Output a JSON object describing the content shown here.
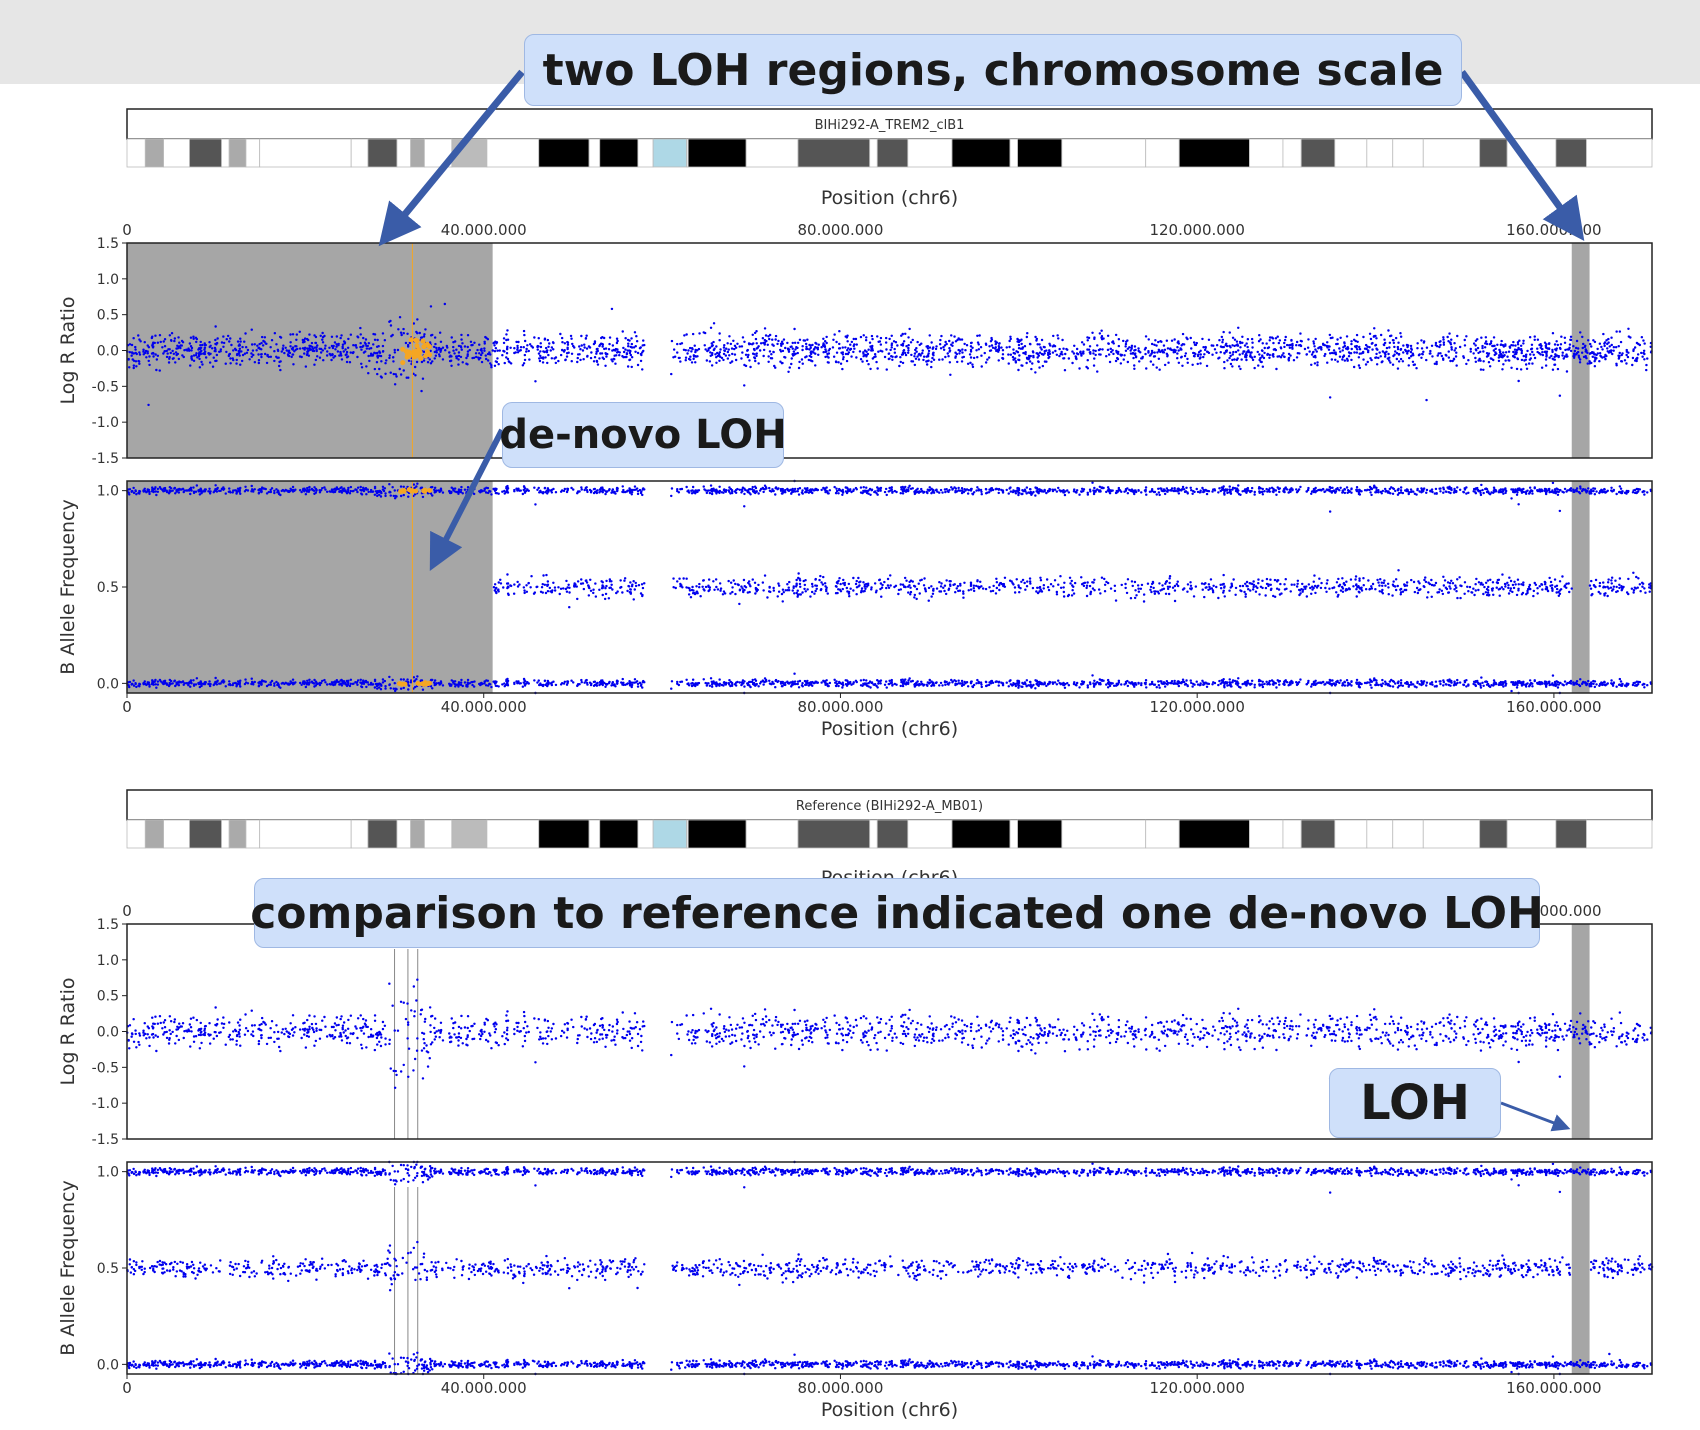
{
  "annotations": {
    "two_loh": "two LOH regions, chromosome scale",
    "denovo": "de-novo LOH",
    "comparison": "comparison to reference indicated one de-novo LOH",
    "loh": "LOH"
  },
  "colors": {
    "points": "#0000ee",
    "highlight_points": "#f5a623",
    "loh_region": "#a6a6a6",
    "arrow": "#3a5ca8",
    "callout_fill": "#cfe0fa"
  },
  "chart_data": [
    {
      "type": "scatter",
      "title": "BIHi292-A_TREM2_clB1",
      "xlabel": "Position (chr6)",
      "xlim": [
        0,
        171000000
      ],
      "xticks": [
        0,
        40000000,
        80000000,
        120000000,
        160000000
      ],
      "xtick_labels": [
        "0",
        "40.000.000",
        "80.000.000",
        "120.000.000",
        "160.000.000"
      ],
      "grid": false,
      "loh_regions": [
        [
          0,
          41000000
        ],
        [
          162000000,
          164000000
        ]
      ],
      "centromere_gap": [
        58000000,
        61000000
      ],
      "highlight_x_range": [
        28000000,
        33500000
      ],
      "panels": [
        {
          "ylabel": "Log R Ratio",
          "ylim": [
            -1.5,
            1.5
          ],
          "yticks": [
            -1.5,
            -1.0,
            -0.5,
            0.0,
            0.5,
            1.0,
            1.5
          ],
          "ytick_labels": [
            "-1.5",
            "-1.0",
            "-0.5",
            "0.0",
            "0.5",
            "1.0",
            "1.5"
          ],
          "bands": [
            {
              "y": 0.0,
              "spread": 0.18
            }
          ]
        },
        {
          "ylabel": "B Allele Frequency",
          "ylim": [
            -0.05,
            1.05
          ],
          "yticks": [
            0.0,
            0.5,
            1.0
          ],
          "ytick_labels": [
            "0.0",
            "0.5",
            "1.0"
          ],
          "bands": [
            {
              "y": 1.0,
              "spread": 0.015
            },
            {
              "y": 0.5,
              "spread": 0.04,
              "het": true
            },
            {
              "y": 0.0,
              "spread": 0.015
            }
          ]
        }
      ]
    },
    {
      "type": "scatter",
      "title": "Reference (BIHi292-A_MB01)",
      "xlabel": "Position (chr6)",
      "xlim": [
        0,
        171000000
      ],
      "xticks": [
        0,
        40000000,
        80000000,
        120000000,
        160000000
      ],
      "xtick_labels": [
        "0",
        "40.000.000",
        "80.000.000",
        "120.000.000",
        "160.000.000"
      ],
      "grid": false,
      "loh_regions": [
        [
          162000000,
          164000000
        ]
      ],
      "centromere_gap": [
        58000000,
        61000000
      ],
      "noisy_x_range": [
        29000000,
        34000000
      ],
      "panels": [
        {
          "ylabel": "Log R Ratio",
          "ylim": [
            -1.5,
            1.5
          ],
          "yticks": [
            -1.5,
            -1.0,
            -0.5,
            0.0,
            0.5,
            1.0,
            1.5
          ],
          "ytick_labels": [
            "-1.5",
            "-1.0",
            "-0.5",
            "0.0",
            "0.5",
            "1.0",
            "1.5"
          ],
          "bands": [
            {
              "y": 0.0,
              "spread": 0.18
            }
          ]
        },
        {
          "ylabel": "B Allele Frequency",
          "ylim": [
            -0.05,
            1.05
          ],
          "yticks": [
            0.0,
            0.5,
            1.0
          ],
          "ytick_labels": [
            "0.0",
            "0.5",
            "1.0"
          ],
          "bands": [
            {
              "y": 1.0,
              "spread": 0.015
            },
            {
              "y": 0.5,
              "spread": 0.04,
              "het": true
            },
            {
              "y": 0.0,
              "spread": 0.015
            }
          ]
        }
      ]
    }
  ]
}
